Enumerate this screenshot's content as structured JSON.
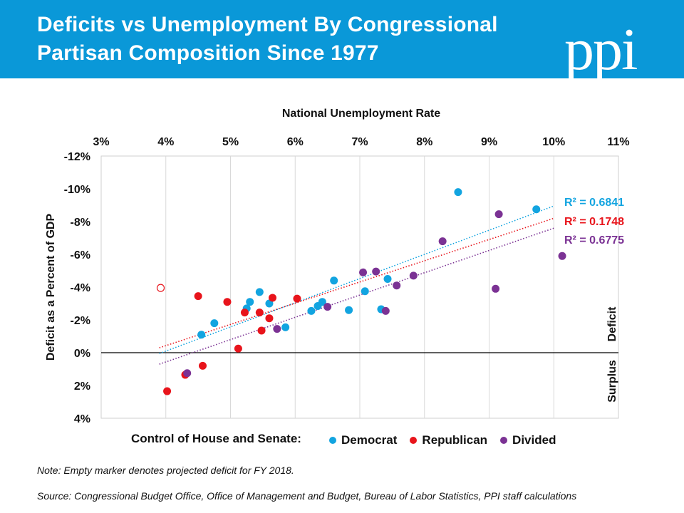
{
  "header": {
    "title_line1": "Deficits vs Unemployment By Congressional",
    "title_line2": "Partisan Composition Since 1977",
    "logo_text": "ppi",
    "background_color": "#0a98d8"
  },
  "legend": {
    "title": "Control of House and Senate:",
    "items": [
      {
        "label": "Democrat",
        "color": "#12a4e0"
      },
      {
        "label": "Republican",
        "color": "#e8141b"
      },
      {
        "label": "Divided",
        "color": "#7b3294"
      }
    ]
  },
  "notes": {
    "note": "Note: Empty marker denotes projected deficit for FY 2018.",
    "source": "Source: Congressional Budget Office, Office of Management and Budget, Bureau of Labor Statistics, PPI staff calculations"
  },
  "chart_data": {
    "type": "scatter",
    "title": "",
    "xlabel": "National Unemployment Rate",
    "ylabel": "Deficit as a Percent of GDP",
    "x_axis_position": "top",
    "y_axis_inverted": true,
    "xlim": [
      3,
      11
    ],
    "ylim": [
      -12,
      4
    ],
    "x_ticks": [
      "3%",
      "4%",
      "5%",
      "6%",
      "7%",
      "8%",
      "9%",
      "10%",
      "11%"
    ],
    "y_ticks": [
      "-12%",
      "-10%",
      "-8%",
      "-6%",
      "-4%",
      "-2%",
      "0%",
      "2%",
      "4%"
    ],
    "grid_vertical": true,
    "grid_horizontal": false,
    "zero_line": true,
    "region_labels": {
      "deficit": "Deficit",
      "surplus": "Surplus"
    },
    "series": [
      {
        "name": "Democrat",
        "color": "#12a4e0",
        "r_squared": "R² = 0.6841",
        "trend": {
          "x": [
            3.9,
            10.0
          ],
          "y": [
            0.05,
            -8.95
          ]
        },
        "points": [
          {
            "x": 4.55,
            "y": -1.1
          },
          {
            "x": 4.75,
            "y": -1.8
          },
          {
            "x": 5.25,
            "y": -2.7
          },
          {
            "x": 5.3,
            "y": -3.1
          },
          {
            "x": 5.45,
            "y": -3.7
          },
          {
            "x": 5.6,
            "y": -3.0
          },
          {
            "x": 5.85,
            "y": -1.55
          },
          {
            "x": 6.25,
            "y": -2.55
          },
          {
            "x": 6.35,
            "y": -2.85
          },
          {
            "x": 6.42,
            "y": -3.1
          },
          {
            "x": 6.6,
            "y": -4.4
          },
          {
            "x": 6.83,
            "y": -2.6
          },
          {
            "x": 7.08,
            "y": -3.75
          },
          {
            "x": 7.33,
            "y": -2.65
          },
          {
            "x": 7.43,
            "y": -4.5
          },
          {
            "x": 8.52,
            "y": -9.8
          },
          {
            "x": 9.73,
            "y": -8.75
          }
        ]
      },
      {
        "name": "Republican",
        "color": "#e8141b",
        "r_squared": "R² = 0.1748",
        "trend": {
          "x": [
            3.9,
            10.0
          ],
          "y": [
            -0.3,
            -8.2
          ]
        },
        "points": [
          {
            "x": 4.02,
            "y": 2.35
          },
          {
            "x": 4.3,
            "y": 1.35
          },
          {
            "x": 4.5,
            "y": -3.45
          },
          {
            "x": 4.57,
            "y": 0.8
          },
          {
            "x": 4.95,
            "y": -3.1
          },
          {
            "x": 5.12,
            "y": -0.25
          },
          {
            "x": 5.22,
            "y": -2.45
          },
          {
            "x": 5.45,
            "y": -2.45
          },
          {
            "x": 5.48,
            "y": -1.35
          },
          {
            "x": 5.6,
            "y": -2.1
          },
          {
            "x": 5.65,
            "y": -3.35
          },
          {
            "x": 6.03,
            "y": -3.3
          }
        ],
        "projected_points": [
          {
            "x": 3.92,
            "y": -3.95
          }
        ]
      },
      {
        "name": "Divided",
        "color": "#7b3294",
        "r_squared": "R² = 0.6775",
        "trend": {
          "x": [
            3.9,
            10.0
          ],
          "y": [
            0.7,
            -7.6
          ]
        },
        "points": [
          {
            "x": 4.33,
            "y": 1.25
          },
          {
            "x": 5.72,
            "y": -1.45
          },
          {
            "x": 6.5,
            "y": -2.8
          },
          {
            "x": 7.05,
            "y": -4.9
          },
          {
            "x": 7.25,
            "y": -4.95
          },
          {
            "x": 7.4,
            "y": -2.55
          },
          {
            "x": 7.57,
            "y": -4.1
          },
          {
            "x": 7.83,
            "y": -4.7
          },
          {
            "x": 8.28,
            "y": -6.8
          },
          {
            "x": 9.1,
            "y": -3.9
          },
          {
            "x": 9.15,
            "y": -8.45
          },
          {
            "x": 10.13,
            "y": -5.9
          }
        ]
      }
    ]
  }
}
